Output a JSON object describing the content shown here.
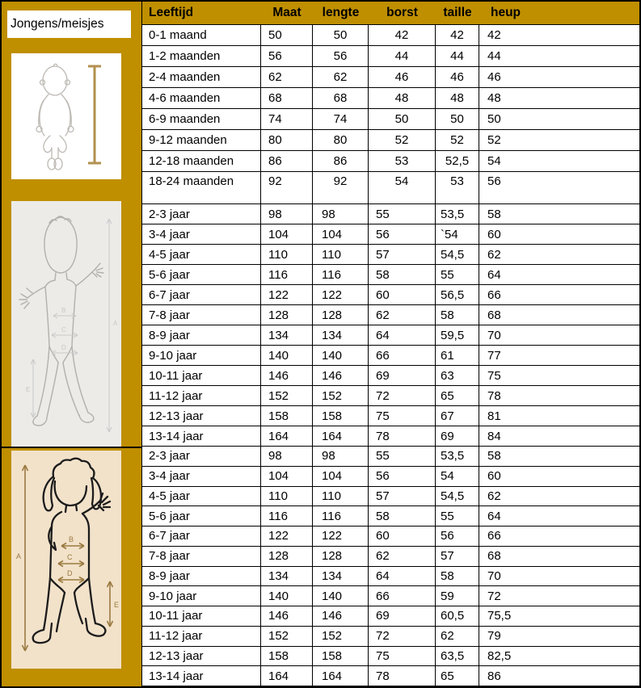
{
  "colors": {
    "gold": "#BF8F00",
    "table_border": "#000000",
    "baby_box_bg": "#FFFFFF",
    "boy_box_bg": "#ECEBE8",
    "girl_box_bg": "#F2E2CA",
    "baby_outline": "#BEBAB4",
    "boy_outline": "#B3B0AC",
    "girl_outline": "#1C1C1C",
    "ruler": "#B2914E",
    "girl_arrow": "#9A7A40",
    "boy_mark": "#C8C8C8"
  },
  "sidebar": {
    "label": "Jongens/meisjes"
  },
  "illustrations": {
    "measure_labels": [
      "A",
      "B",
      "C",
      "D",
      "E"
    ]
  },
  "table": {
    "headers": [
      "Leeftijd",
      "Maat",
      "lengte",
      "borst",
      "taille",
      "heup"
    ],
    "sections": [
      {
        "id": "baby",
        "align": "align-center-mid",
        "rows": [
          [
            "0-1 maand",
            "50",
            "50",
            "42",
            "42",
            "42"
          ],
          [
            "1-2 maanden",
            "56",
            "56",
            "44",
            "44",
            "44"
          ],
          [
            "2-4 maanden",
            "62",
            "62",
            "46",
            "46",
            "46"
          ],
          [
            "4-6 maanden",
            "68",
            "68",
            "48",
            "48",
            "48"
          ],
          [
            "6-9 maanden",
            "74",
            "74",
            "50",
            "50",
            "50"
          ],
          [
            "9-12 maanden",
            "80",
            "80",
            "52",
            "52",
            "52"
          ],
          [
            "12-18 maanden",
            "86",
            "86",
            "53",
            "52,5",
            "54"
          ],
          [
            "18-24 maanden",
            "92",
            "92",
            "54",
            "53",
            "56"
          ]
        ]
      },
      {
        "id": "boy",
        "align": "align-left",
        "rows": [
          [
            "2-3 jaar",
            "98",
            "98",
            "55",
            "53,5",
            "58"
          ],
          [
            "3-4 jaar",
            "104",
            "104",
            "56",
            "`54",
            "60"
          ],
          [
            "4-5 jaar",
            "110",
            "110",
            "57",
            "54,5",
            "62"
          ],
          [
            "5-6 jaar",
            "116",
            "116",
            "58",
            "55",
            "64"
          ],
          [
            "6-7 jaar",
            "122",
            "122",
            "60",
            "56,5",
            "66"
          ],
          [
            "7-8 jaar",
            "128",
            "128",
            "62",
            "58",
            "68"
          ],
          [
            "8-9 jaar",
            "134",
            "134",
            "64",
            "59,5",
            "70"
          ],
          [
            "9-10 jaar",
            "140",
            "140",
            "66",
            "61",
            "77"
          ],
          [
            "10-11 jaar",
            "146",
            "146",
            "69",
            "63",
            "75"
          ],
          [
            "11-12 jaar",
            "152",
            "152",
            "72",
            "65",
            "78"
          ],
          [
            "12-13 jaar",
            "158",
            "158",
            "75",
            "67",
            "81"
          ],
          [
            "13-14 jaar",
            "164",
            "164",
            "78",
            "69",
            "84"
          ]
        ]
      },
      {
        "id": "girl",
        "align": "align-left",
        "rows": [
          [
            "2-3 jaar",
            "98",
            "98",
            "55",
            "53,5",
            "58"
          ],
          [
            "3-4 jaar",
            "104",
            "104",
            "56",
            "54",
            "60"
          ],
          [
            "4-5 jaar",
            "110",
            "110",
            "57",
            "54,5",
            "62"
          ],
          [
            "5-6 jaar",
            "116",
            "116",
            "58",
            "55",
            "64"
          ],
          [
            "6-7 jaar",
            "122",
            "122",
            "60",
            "56",
            "66"
          ],
          [
            "7-8 jaar",
            "128",
            "128",
            "62",
            "57",
            "68"
          ],
          [
            "8-9 jaar",
            "134",
            "134",
            "64",
            "58",
            "70"
          ],
          [
            "9-10 jaar",
            "140",
            "140",
            "66",
            "59",
            "72"
          ],
          [
            "10-11 jaar",
            "146",
            "146",
            "69",
            "60,5",
            "75,5"
          ],
          [
            "11-12 jaar",
            "152",
            "152",
            "72",
            "62",
            "79"
          ],
          [
            "12-13 jaar",
            "158",
            "158",
            "75",
            "63,5",
            "82,5"
          ],
          [
            "13-14 jaar",
            "164",
            "164",
            "78",
            "65",
            "86"
          ]
        ]
      }
    ]
  }
}
